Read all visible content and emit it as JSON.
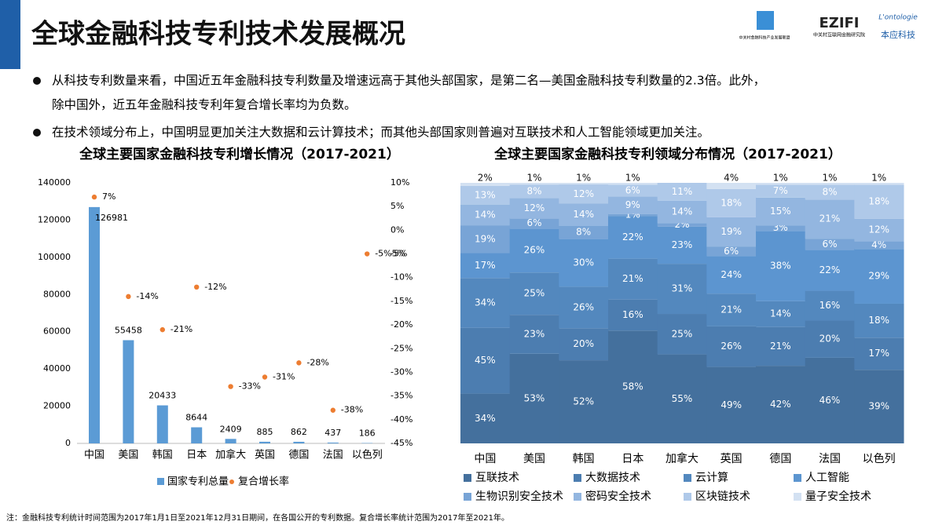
{
  "header": {
    "title": "全球金融科技专利技术发展概况",
    "logos": [
      "中关村金融科技产业发展联盟",
      "EZIFI",
      "中关村互联网金融研究院",
      "L'ontologie",
      "本应科技"
    ]
  },
  "bullets": [
    "从科技专利数量来看，中国近五年金融科技专利数量及增速远高于其他头部国家，是第二名—美国金融科技专利数量的2.3倍。此外，",
    "除中国外，近五年金融科技专利年复合增长率均为负数。",
    "在技术领域分布上，中国明显更加关注大数据和云计算技术；而其他头部国家则普遍对互联技术和人工智能领域更加关注。"
  ],
  "footnote": "注：金融科技专利统计时间范围为2017年1月1日至2021年12月31日期间，在各国公开的专利数据。复合增长率统计范围为2017年至2021年。",
  "chart_data": [
    {
      "type": "bar",
      "title": "全球主要国家金融科技专利增长情况（2017-2021）",
      "categories": [
        "中国",
        "美国",
        "韩国",
        "日本",
        "加拿大",
        "英国",
        "德国",
        "法国",
        "以色列"
      ],
      "series": [
        {
          "name": "国家专利总量",
          "color": "#5b9bd5",
          "values": [
            126981,
            55458,
            20433,
            8644,
            2409,
            885,
            862,
            437,
            186
          ]
        },
        {
          "name": "复合增长率",
          "color": "#ed7d31",
          "axis": "y2",
          "values": [
            7,
            -14,
            -21,
            -12,
            -33,
            -31,
            -28,
            -38,
            -5
          ],
          "value_labels": [
            "7%",
            "-14%",
            "-21%",
            "-12%",
            "-33%",
            "-31%",
            "-28%",
            "-38%",
            "-5%5%"
          ]
        }
      ],
      "ylim": [
        0,
        140000
      ],
      "yticks": [
        0,
        20000,
        40000,
        60000,
        80000,
        100000,
        120000,
        140000
      ],
      "y2lim": [
        -45,
        10
      ],
      "y2ticks": [
        {
          "value": 10,
          "label": "10%"
        },
        {
          "value": 5,
          "label": "5%"
        },
        {
          "value": 0,
          "label": "0%"
        },
        {
          "value": -5,
          "label": "-5%"
        },
        {
          "value": -10,
          "label": "-10%"
        },
        {
          "value": -15,
          "label": "-15%"
        },
        {
          "value": -20,
          "label": "-20%"
        },
        {
          "value": -25,
          "label": "-25%"
        },
        {
          "value": -30,
          "label": "-30%"
        },
        {
          "value": -35,
          "label": "-35%"
        },
        {
          "value": -40,
          "label": "-40%"
        },
        {
          "value": -45,
          "label": "-45%"
        }
      ],
      "legend": "bottom"
    },
    {
      "type": "stacked_bar",
      "title": "全球主要国家金融科技专利领域分布情况（2017-2021）",
      "categories": [
        "中国",
        "美国",
        "韩国",
        "日本",
        "加拿大",
        "英国",
        "德国",
        "法国",
        "以色列"
      ],
      "series": [
        {
          "name": "互联技术",
          "color": "#44709d",
          "values": [
            34,
            53,
            52,
            58,
            55,
            49,
            42,
            46,
            39
          ],
          "value_labels": [
            "34%",
            "53%",
            "52%",
            "58%",
            "55%",
            "49%",
            "42%",
            "46%",
            "39%"
          ]
        },
        {
          "name": "大数据技术",
          "color": "#4c7db0",
          "values": [
            45,
            23,
            20,
            16,
            25,
            26,
            21,
            20,
            17
          ],
          "value_labels": [
            "45%",
            "23%",
            "20%",
            "16%",
            "25%",
            "26%",
            "21%",
            "20%",
            "17%"
          ]
        },
        {
          "name": "云计算",
          "color": "#5388be",
          "values": [
            34,
            25,
            26,
            21,
            31,
            21,
            14,
            16,
            18
          ],
          "value_labels": [
            "34%",
            "25%",
            "26%",
            "21%",
            "31%",
            "21%",
            "14%",
            "16%",
            "18%"
          ]
        },
        {
          "name": "人工智能",
          "color": "#5c95d0",
          "values": [
            17,
            26,
            30,
            22,
            23,
            24,
            38,
            22,
            29
          ],
          "value_labels": [
            "17%",
            "26%",
            "30%",
            "22%",
            "23%",
            "24%",
            "38%",
            "22%",
            "29%"
          ]
        },
        {
          "name": "生物识别安全技术",
          "color": "#78a4d6",
          "values": [
            19,
            6,
            8,
            1,
            2,
            6,
            3,
            6,
            4
          ],
          "value_labels": [
            "19%",
            "6%",
            "8%",
            "1%",
            "2%",
            "6%",
            "3%",
            "6%",
            "4%"
          ]
        },
        {
          "name": "密码安全技术",
          "color": "#93b6e0",
          "values": [
            14,
            12,
            14,
            9,
            14,
            19,
            15,
            21,
            12
          ],
          "value_labels": [
            "14%",
            "12%",
            "14%",
            "9%",
            "14%",
            "19%",
            "15%",
            "21%",
            "12%"
          ]
        },
        {
          "name": "区块链技术",
          "color": "#afc9e9",
          "values": [
            13,
            8,
            12,
            6,
            11,
            18,
            7,
            8,
            18
          ],
          "value_labels": [
            "13%",
            "8%",
            "12%",
            "6%",
            "11%",
            "18%",
            "7%",
            "8%",
            "18%"
          ]
        },
        {
          "name": "量子安全技术",
          "color": "#d3e1f2",
          "values": [
            2,
            1,
            1,
            1,
            null,
            4,
            1,
            1,
            1
          ],
          "value_labels": [
            "2%",
            "1%",
            "1%",
            "1%",
            null,
            "4%",
            "1%",
            "1%",
            "1%"
          ]
        }
      ],
      "legend": "bottom"
    }
  ]
}
